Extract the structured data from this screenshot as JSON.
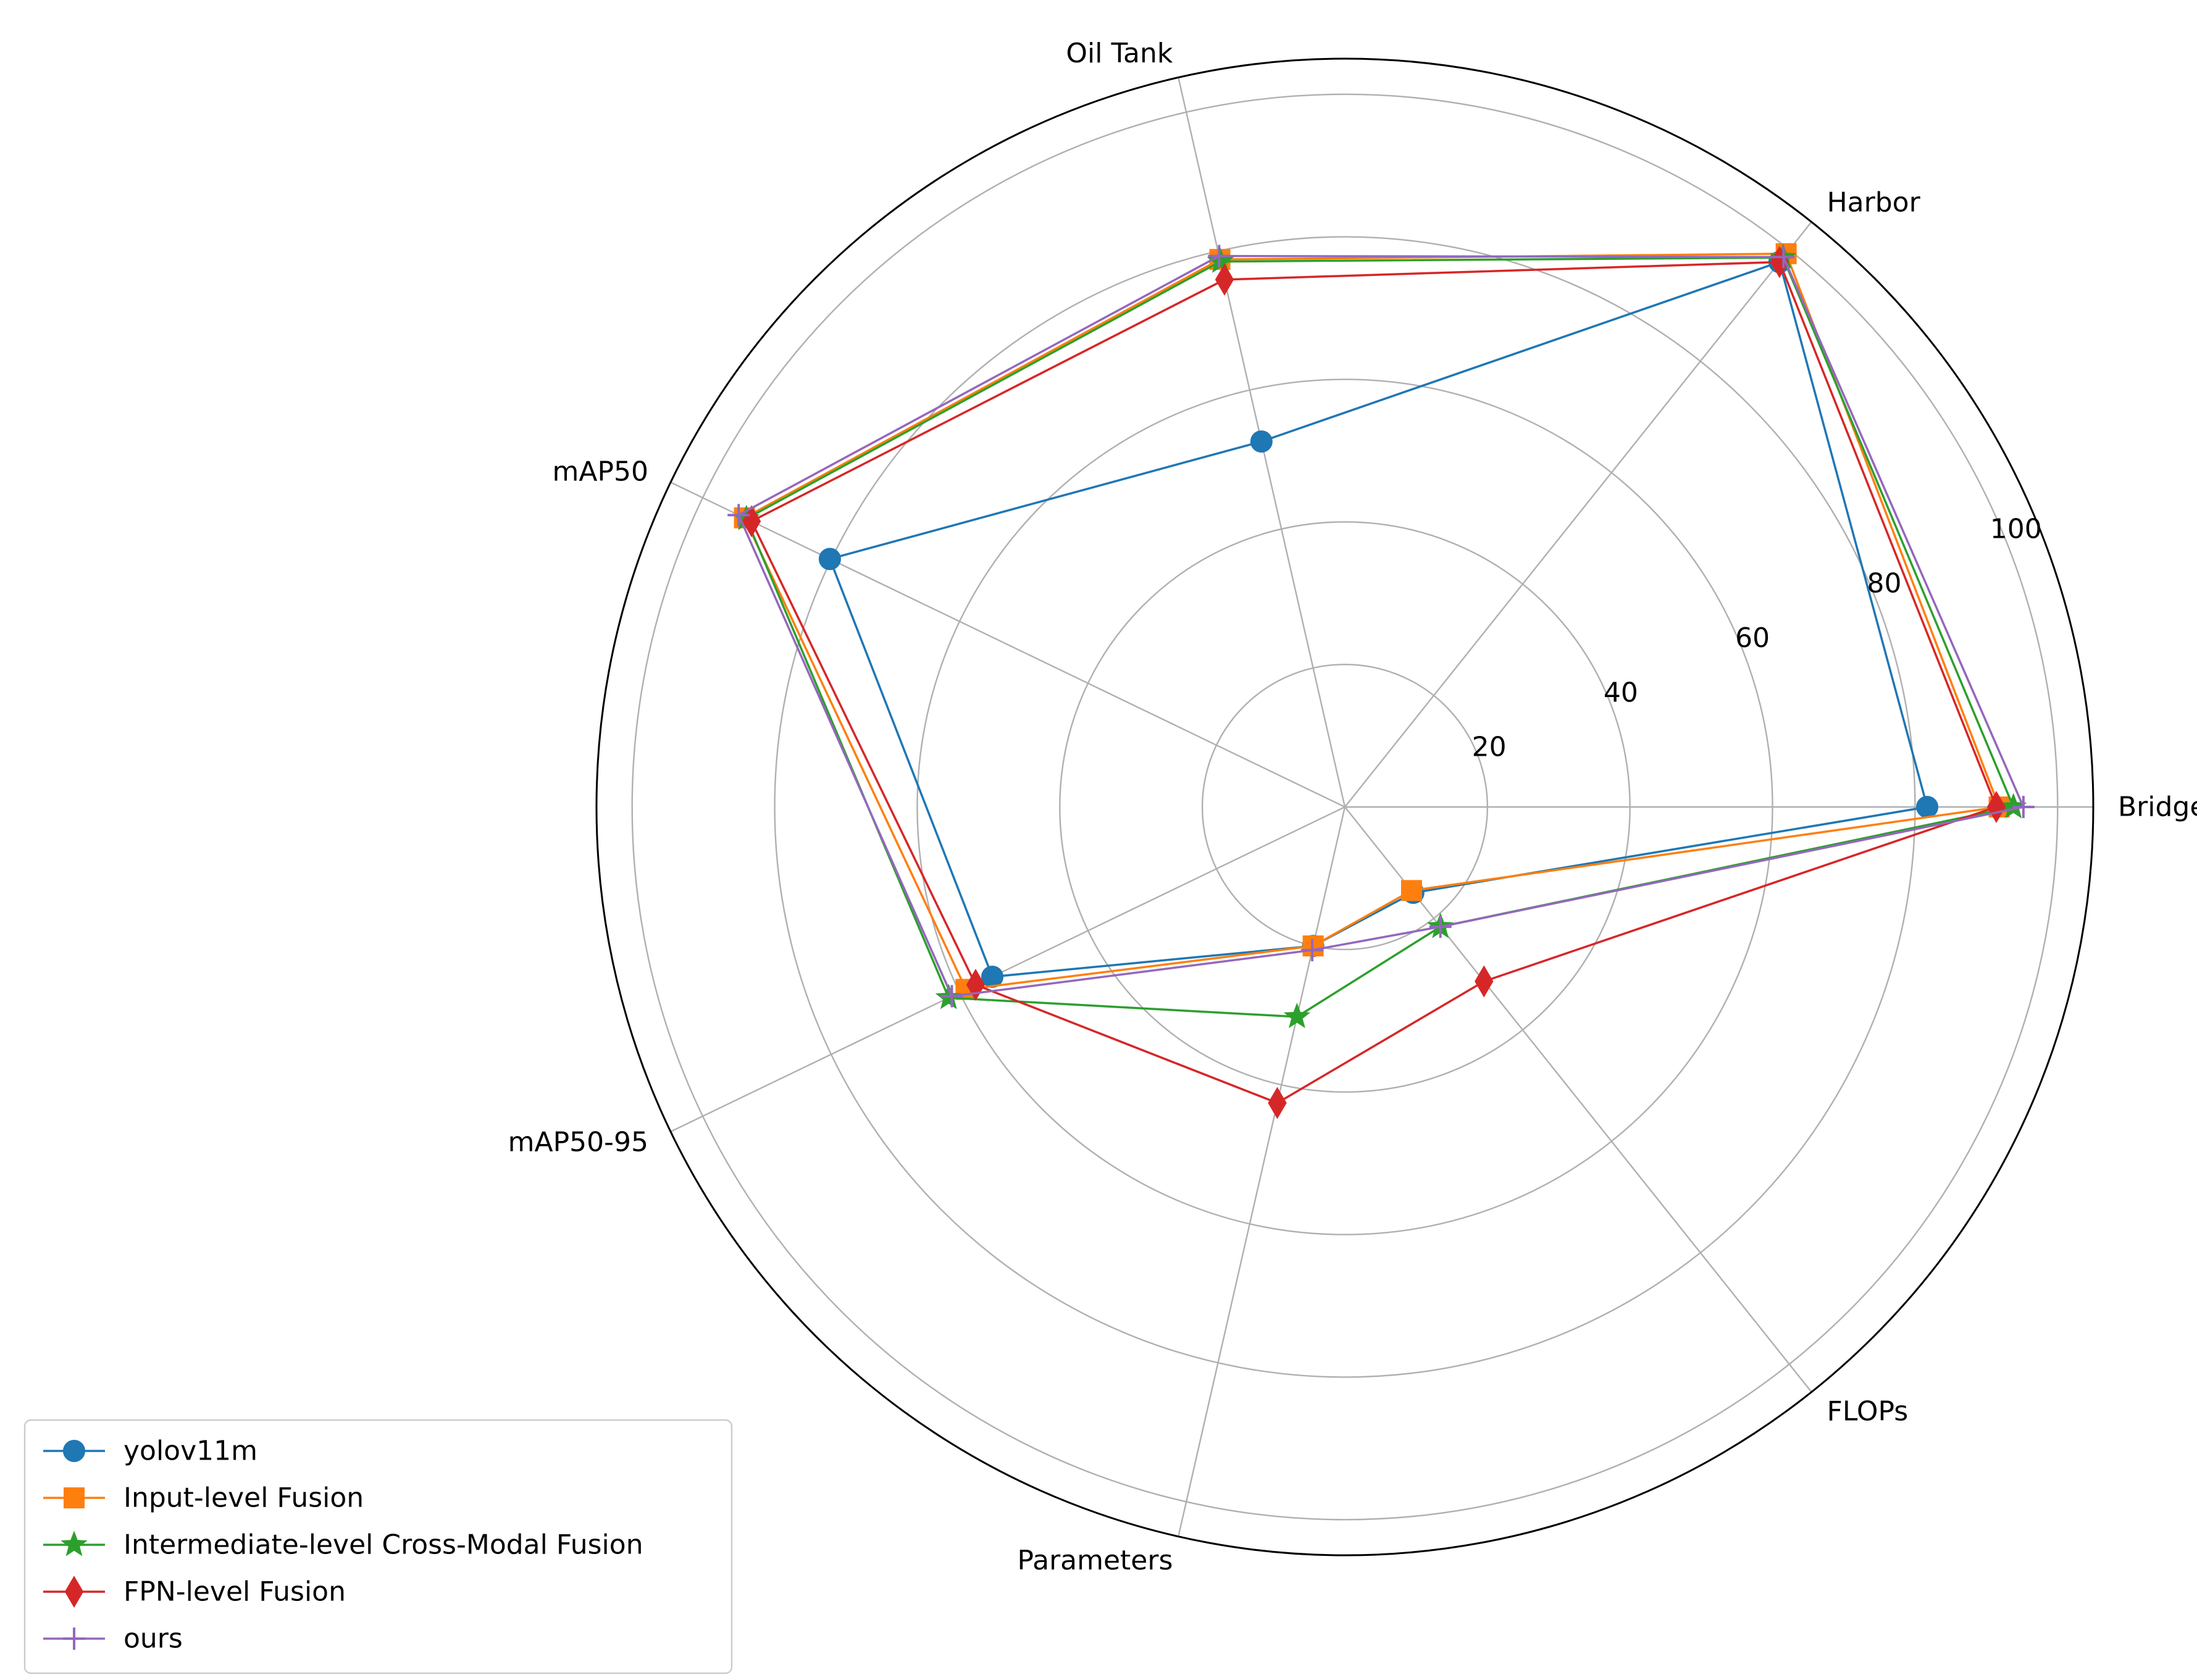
{
  "chart_data": {
    "type": "radar",
    "categories": [
      "Bridge",
      "Harbor",
      "Oil Tank",
      "mAP50",
      "mAP50-95",
      "Parameters",
      "FLOPs"
    ],
    "rlim": [
      0,
      105
    ],
    "rticks": [
      20,
      40,
      60,
      80,
      100
    ],
    "rtick_labels": [
      "20",
      "40",
      "60",
      "80",
      "100"
    ],
    "grid": true,
    "legend_position": "bottom-left",
    "series": [
      {
        "name": "yolov11m",
        "color": "#1f77b4",
        "marker": "circle",
        "values": [
          81.7,
          97.8,
          52.6,
          80.2,
          54.9,
          20.0,
          15.4
        ]
      },
      {
        "name": "Input-level Fusion",
        "color": "#ff7f0e",
        "marker": "square",
        "values": [
          91.8,
          99.3,
          78.8,
          93.5,
          59.0,
          20.0,
          15.0
        ]
      },
      {
        "name": "Intermediate-level Cross-Modal Fusion",
        "color": "#2ca02c",
        "marker": "star",
        "values": [
          93.8,
          98.6,
          78.5,
          93.2,
          61.7,
          30.2,
          21.5
        ]
      },
      {
        "name": "FPN-level Fusion",
        "color": "#d62728",
        "marker": "diamond",
        "values": [
          91.4,
          97.8,
          75.9,
          92.4,
          57.5,
          42.6,
          31.3
        ]
      },
      {
        "name": "ours",
        "color": "#9467bd",
        "marker": "plus",
        "values": [
          95.2,
          98.7,
          79.3,
          94.4,
          61.2,
          20.6,
          21.5
        ]
      }
    ]
  }
}
